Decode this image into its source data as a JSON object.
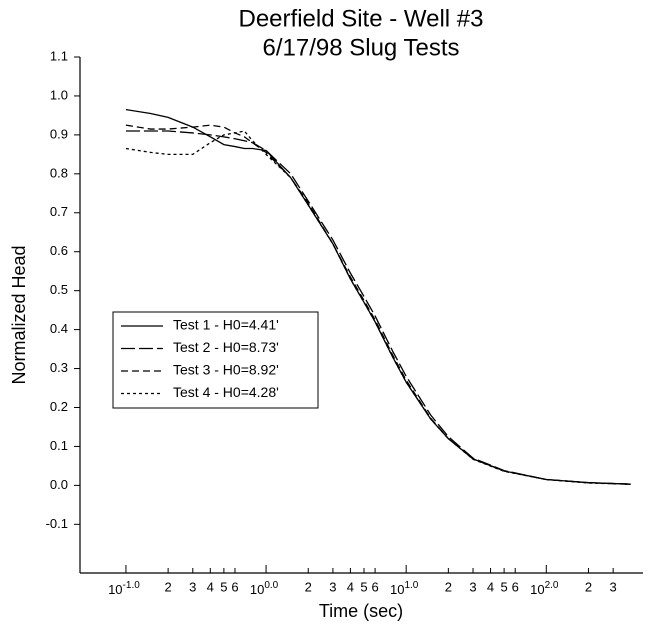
{
  "chart_data": {
    "type": "line",
    "title": "Deerfield Site - Well #3",
    "subtitle": "6/17/98 Slug Tests",
    "x_label": "Time (sec)",
    "y_label": "Normalized Head",
    "x_log": true,
    "xlim": [
      0.047,
      490
    ],
    "ylim": [
      -0.225,
      1.1
    ],
    "xticks": [
      {
        "value": 0.1,
        "label": "10",
        "exponent": "-1.0"
      },
      {
        "value": 0.2,
        "label": "2"
      },
      {
        "value": 0.3,
        "label": "3"
      },
      {
        "value": 0.4,
        "label": "4"
      },
      {
        "value": 0.5,
        "label": "5"
      },
      {
        "value": 0.6,
        "label": "6"
      },
      {
        "value": 1,
        "label": "10",
        "exponent": "0.0"
      },
      {
        "value": 2,
        "label": "2"
      },
      {
        "value": 3,
        "label": "3"
      },
      {
        "value": 4,
        "label": "4"
      },
      {
        "value": 5,
        "label": "5"
      },
      {
        "value": 6,
        "label": "6"
      },
      {
        "value": 10,
        "label": "10",
        "exponent": "1.0"
      },
      {
        "value": 20,
        "label": "2"
      },
      {
        "value": 30,
        "label": "3"
      },
      {
        "value": 40,
        "label": "4"
      },
      {
        "value": 50,
        "label": "5"
      },
      {
        "value": 60,
        "label": "6"
      },
      {
        "value": 100,
        "label": "10",
        "exponent": "2.0"
      },
      {
        "value": 200,
        "label": "2"
      },
      {
        "value": 300,
        "label": "3"
      }
    ],
    "yticks": [
      -0.1,
      {
        "value": 0,
        "label": "0.0"
      },
      0.1,
      0.2,
      0.3,
      0.4,
      0.5,
      0.6,
      0.7,
      0.8,
      0.9,
      {
        "value": 1,
        "label": "1.0"
      },
      1.1
    ],
    "x": [
      0.1,
      0.15,
      0.2,
      0.3,
      0.4,
      0.5,
      0.6,
      0.7,
      0.8,
      1,
      1.5,
      2,
      3,
      4,
      5,
      6,
      8,
      10,
      15,
      20,
      30,
      50,
      100,
      200,
      400
    ],
    "series": [
      {
        "name": "Test 1 - H0=4.41'",
        "color": "#000000",
        "dash": "none",
        "values": [
          0.965,
          0.955,
          0.945,
          0.92,
          0.895,
          0.875,
          0.87,
          0.865,
          0.865,
          0.86,
          0.79,
          0.72,
          0.62,
          0.53,
          0.47,
          0.42,
          0.33,
          0.265,
          0.17,
          0.12,
          0.068,
          0.037,
          0.015,
          0.007,
          0.003
        ]
      },
      {
        "name": "Test 2 - H0=8.73'",
        "color": "#000000",
        "dash": "14,4",
        "values": [
          0.91,
          0.91,
          0.91,
          0.905,
          0.9,
          0.895,
          0.89,
          0.885,
          0.88,
          0.86,
          0.8,
          0.73,
          0.63,
          0.545,
          0.485,
          0.435,
          0.345,
          0.28,
          0.18,
          0.125,
          0.07,
          0.038,
          0.015,
          0.007,
          0.003
        ]
      },
      {
        "name": "Test 3 - H0=8.92'",
        "color": "#000000",
        "dash": "7,4",
        "values": [
          0.925,
          0.915,
          0.915,
          0.92,
          0.925,
          0.92,
          0.905,
          0.895,
          0.88,
          0.855,
          0.79,
          0.725,
          0.62,
          0.535,
          0.475,
          0.425,
          0.335,
          0.27,
          0.172,
          0.12,
          0.068,
          0.037,
          0.015,
          0.007,
          0.003
        ]
      },
      {
        "name": "Test 4 - H0=4.28'",
        "color": "#000000",
        "dash": "3,3",
        "values": [
          0.865,
          0.855,
          0.85,
          0.85,
          0.88,
          0.9,
          0.905,
          0.91,
          0.885,
          0.85,
          0.79,
          0.72,
          0.62,
          0.53,
          0.47,
          0.42,
          0.33,
          0.265,
          0.17,
          0.12,
          0.067,
          0.036,
          0.015,
          0.006,
          0.003
        ]
      }
    ],
    "legend": "middle-left"
  }
}
